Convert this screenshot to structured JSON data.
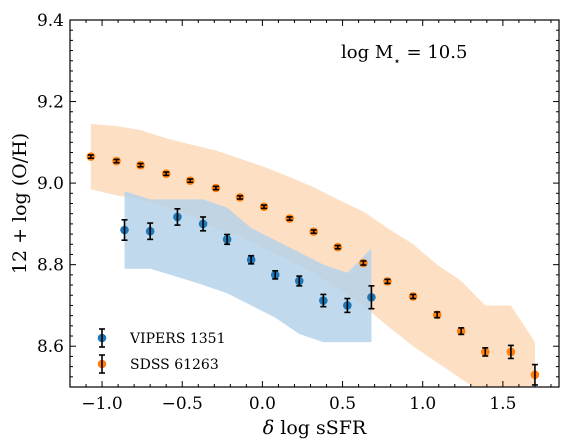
{
  "chart_data": {
    "type": "scatter",
    "annotation_prefix": "log M",
    "annotation_subscript": "⋆",
    "annotation_value": " = 10.5",
    "xlabel_delta": "δ",
    "xlabel_rest": " log sSFR",
    "ylabel": "12 + log (O/H)",
    "xlim": [
      -1.2,
      1.85
    ],
    "ylim": [
      8.5,
      9.4
    ],
    "xticks": [
      -1.0,
      -0.5,
      0.0,
      0.5,
      1.0,
      1.5
    ],
    "xtick_labels": [
      "−1.0",
      "−0.5",
      "0.0",
      "0.5",
      "1.0",
      "1.5"
    ],
    "yticks": [
      8.6,
      8.8,
      9.0,
      9.2,
      9.4
    ],
    "ytick_labels": [
      "8.6",
      "8.8",
      "9.0",
      "9.2",
      "9.4"
    ],
    "legend_position": "lower-left",
    "series": [
      {
        "name": "VIPERS 1351",
        "color": "#1f77b4",
        "band_color": "#b6d2ea",
        "x": [
          -0.86,
          -0.7,
          -0.53,
          -0.37,
          -0.22,
          -0.07,
          0.08,
          0.23,
          0.38,
          0.53,
          0.68
        ],
        "y": [
          8.885,
          8.882,
          8.917,
          8.9,
          8.862,
          8.812,
          8.775,
          8.76,
          8.712,
          8.7,
          8.72
        ],
        "yerr": [
          0.025,
          0.02,
          0.02,
          0.017,
          0.012,
          0.01,
          0.01,
          0.012,
          0.015,
          0.017,
          0.028
        ],
        "band_x": [
          -0.86,
          -0.7,
          -0.53,
          -0.37,
          -0.22,
          -0.07,
          0.08,
          0.23,
          0.38,
          0.53,
          0.68
        ],
        "band_upper": [
          8.98,
          8.96,
          8.96,
          8.96,
          8.94,
          8.89,
          8.86,
          8.83,
          8.8,
          8.78,
          8.84
        ],
        "band_lower": [
          8.79,
          8.79,
          8.77,
          8.75,
          8.73,
          8.7,
          8.67,
          8.63,
          8.61,
          8.61,
          8.61
        ]
      },
      {
        "name": "SDSS 61263",
        "color": "#ff7f0e",
        "band_color": "#fdd9b8",
        "x": [
          -1.07,
          -0.91,
          -0.76,
          -0.6,
          -0.45,
          -0.29,
          -0.14,
          0.01,
          0.17,
          0.32,
          0.47,
          0.63,
          0.78,
          0.94,
          1.09,
          1.24,
          1.39,
          1.55,
          1.7
        ],
        "y": [
          9.065,
          9.054,
          9.044,
          9.023,
          9.006,
          8.988,
          8.965,
          8.942,
          8.913,
          8.881,
          8.843,
          8.804,
          8.759,
          8.722,
          8.677,
          8.637,
          8.586,
          8.586,
          8.53
        ],
        "yerr": [
          0.004,
          0.004,
          0.004,
          0.004,
          0.004,
          0.004,
          0.004,
          0.004,
          0.004,
          0.004,
          0.004,
          0.005,
          0.005,
          0.005,
          0.007,
          0.008,
          0.01,
          0.016,
          0.025
        ],
        "band_x": [
          -1.07,
          -0.91,
          -0.76,
          -0.6,
          -0.45,
          -0.29,
          -0.14,
          0.01,
          0.17,
          0.32,
          0.47,
          0.63,
          0.78,
          0.94,
          1.09,
          1.24,
          1.39,
          1.55,
          1.7
        ],
        "band_upper": [
          9.145,
          9.14,
          9.13,
          9.11,
          9.095,
          9.08,
          9.06,
          9.04,
          9.015,
          8.99,
          8.96,
          8.93,
          8.89,
          8.85,
          8.8,
          8.76,
          8.7,
          8.7,
          8.61
        ],
        "band_lower": [
          8.985,
          8.97,
          8.96,
          8.94,
          8.92,
          8.89,
          8.87,
          8.84,
          8.81,
          8.78,
          8.74,
          8.7,
          8.65,
          8.6,
          8.56,
          8.52,
          8.48,
          8.48,
          8.48
        ]
      }
    ]
  }
}
